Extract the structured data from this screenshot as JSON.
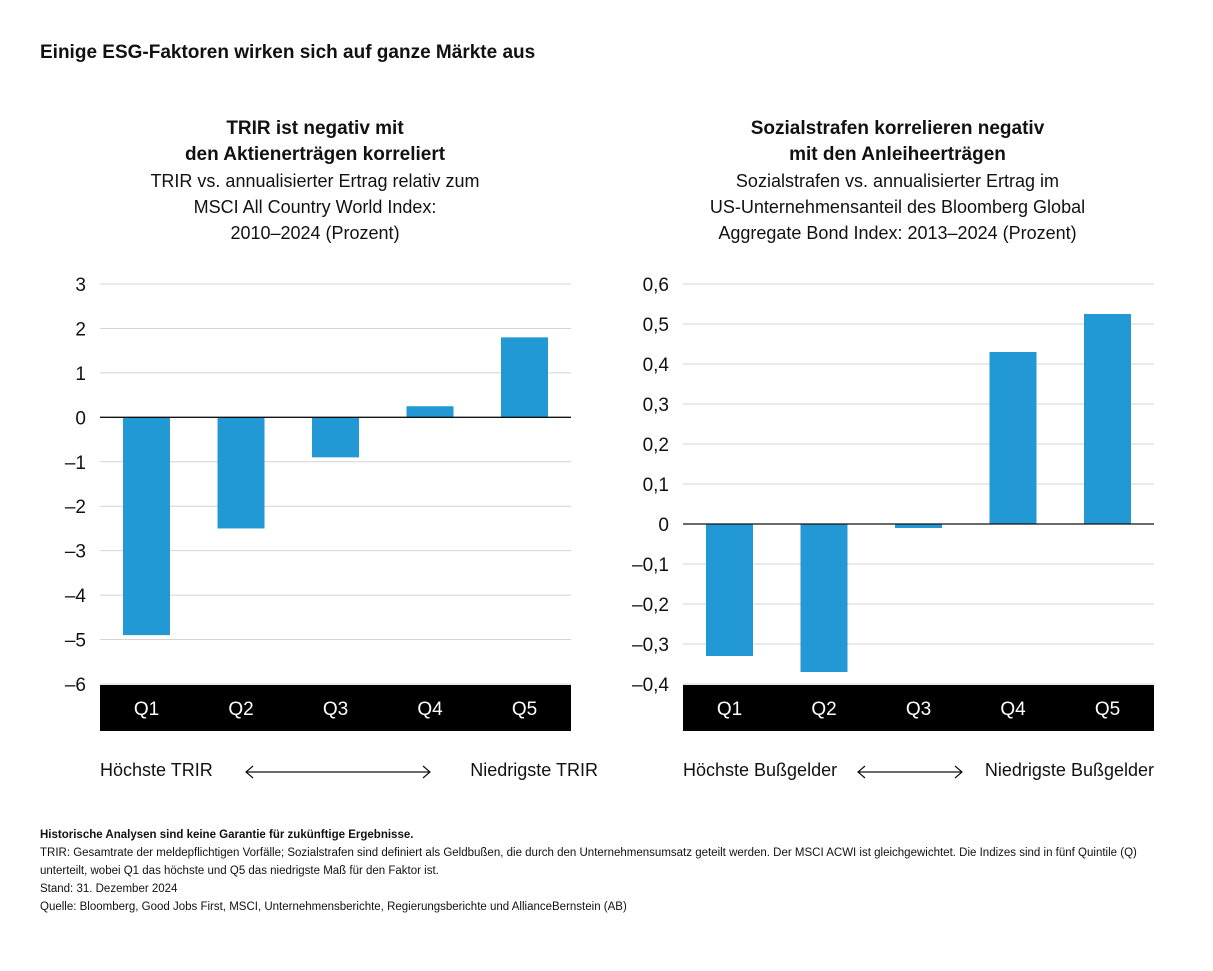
{
  "page_title": "Einige ESG-Faktoren wirken sich auf ganze Märkte aus",
  "chart_data": [
    {
      "type": "bar",
      "title": "TRIR ist negativ mit den Aktienerträgen korreliert",
      "title_line1": "TRIR ist negativ mit",
      "title_line2": "den Aktienerträgen korreliert",
      "subtitle_line1": "TRIR vs. annualisierter Ertrag relativ zum",
      "subtitle_line2": "MSCI All Country World Index:",
      "subtitle_line3": "2010–2024 (Prozent)",
      "categories": [
        "Q1",
        "Q2",
        "Q3",
        "Q4",
        "Q5"
      ],
      "values": [
        -4.9,
        -2.5,
        -0.9,
        0.25,
        1.8
      ],
      "ylim": [
        -6,
        3
      ],
      "yticks": [
        3,
        2,
        1,
        0,
        -1,
        -2,
        -3,
        -4,
        -5,
        -6
      ],
      "ytick_labels": [
        "3",
        "2",
        "1",
        "0",
        "–1",
        "–2",
        "–3",
        "–4",
        "–5",
        "–6"
      ],
      "grid": true,
      "bar_color": "#2299d5",
      "caption_left": "Höchste TRIR",
      "caption_right": "Niedrigste TRIR"
    },
    {
      "type": "bar",
      "title": "Sozialstrafen korrelieren negativ mit den Anleiheerträgen",
      "title_line1": "Sozialstrafen korrelieren negativ",
      "title_line2": "mit den Anleiheerträgen",
      "subtitle_line1": "Sozialstrafen vs. annualisierter Ertrag im",
      "subtitle_line2": "US-Unternehmensanteil des Bloomberg Global",
      "subtitle_line3": "Aggregate Bond Index: 2013–2024 (Prozent)",
      "categories": [
        "Q1",
        "Q2",
        "Q3",
        "Q4",
        "Q5"
      ],
      "values": [
        -0.33,
        -0.37,
        -0.01,
        0.43,
        0.525
      ],
      "ylim": [
        -0.4,
        0.6
      ],
      "yticks": [
        0.6,
        0.5,
        0.4,
        0.3,
        0.2,
        0.1,
        0,
        -0.1,
        -0.2,
        -0.3,
        -0.4
      ],
      "ytick_labels": [
        "0,6",
        "0,5",
        "0,4",
        "0,3",
        "0,2",
        "0,1",
        "0",
        "–0,1",
        "–0,2",
        "–0,3",
        "–0,4"
      ],
      "grid": true,
      "bar_color": "#2299d5",
      "caption_left": "Höchste Bußgelder",
      "caption_right": "Niedrigste Bußgelder"
    }
  ],
  "footnotes": {
    "disclaimer": "Historische Analysen sind keine Garantie für zukünftige Ergebnisse.",
    "definition": "TRIR: Gesamtrate der meldepflichtigen Vorfälle; Sozialstrafen sind definiert als Geldbußen, die durch den Unternehmensumsatz geteilt werden. Der MSCI ACWI ist gleichgewichtet. Die Indizes sind in fünf Quintile (Q) unterteilt, wobei Q1 das höchste und Q5 das niedrigste Maß für den Faktor ist.",
    "date": "Stand: 31. Dezember 2024",
    "source": "Quelle: Bloomberg, Good Jobs First, MSCI, Unternehmensberichte, Regierungsberichte und AllianceBernstein (AB)"
  }
}
